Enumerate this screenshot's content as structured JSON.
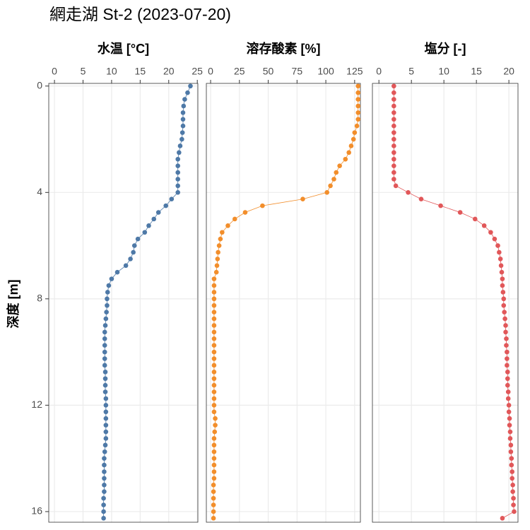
{
  "title": "網走湖 St-2 (2023-07-20)",
  "y_label": "深度 [m]",
  "chart_data": [
    {
      "type": "scatter",
      "title": "水温 [°C]",
      "color": "#4e79a7",
      "xlim": [
        -1,
        25.1
      ],
      "xticks": [
        0,
        5,
        10,
        15,
        20,
        25
      ],
      "ylim": [
        16.4,
        -0.1
      ],
      "yticks": [
        0,
        4,
        8,
        12,
        16
      ],
      "grid": true,
      "y": [
        0,
        0.25,
        0.5,
        0.75,
        1,
        1.25,
        1.5,
        1.75,
        2,
        2.25,
        2.5,
        2.75,
        3,
        3.25,
        3.5,
        3.75,
        4,
        4.25,
        4.5,
        4.75,
        5,
        5.25,
        5.5,
        5.75,
        6,
        6.25,
        6.5,
        6.75,
        7,
        7.25,
        7.5,
        7.75,
        8,
        8.25,
        8.5,
        8.75,
        9,
        9.25,
        9.5,
        9.75,
        10,
        10.25,
        10.5,
        10.75,
        11,
        11.25,
        11.5,
        11.75,
        12,
        12.25,
        12.5,
        12.75,
        13,
        13.25,
        13.5,
        13.75,
        14,
        14.25,
        14.5,
        14.75,
        15,
        15.25,
        15.5,
        15.75,
        16,
        16.25
      ],
      "x": [
        23.8,
        23.3,
        22.8,
        22.6,
        22.5,
        22.5,
        22.5,
        22.4,
        22.3,
        22.0,
        21.8,
        21.6,
        21.6,
        21.6,
        21.6,
        21.6,
        21.6,
        20.5,
        19.5,
        18.2,
        17.4,
        16.5,
        15.8,
        14.6,
        14.0,
        13.8,
        13.3,
        12.5,
        11.0,
        10.0,
        9.5,
        9.3,
        9.2,
        9.2,
        9.1,
        9.0,
        8.9,
        8.8,
        8.8,
        8.8,
        8.8,
        8.8,
        8.8,
        8.9,
        8.9,
        8.9,
        8.9,
        9.0,
        9.0,
        9.0,
        9.0,
        9.0,
        9.0,
        9.0,
        8.9,
        8.8,
        8.7,
        8.7,
        8.7,
        8.7,
        8.7,
        8.7,
        8.6,
        8.6,
        8.6,
        8.6
      ]
    },
    {
      "type": "scatter",
      "title": "溶存酸素 [%]",
      "color": "#f28e2b",
      "xlim": [
        -3.7,
        130
      ],
      "xticks": [
        0,
        25,
        50,
        75,
        100,
        125
      ],
      "ylim": [
        16.4,
        -0.1
      ],
      "yticks": [
        0,
        4,
        8,
        12,
        16
      ],
      "grid": true,
      "y": [
        0,
        0.25,
        0.5,
        0.75,
        1,
        1.25,
        1.5,
        1.75,
        2,
        2.25,
        2.5,
        2.75,
        3,
        3.25,
        3.5,
        3.75,
        4,
        4.25,
        4.5,
        4.75,
        5,
        5.25,
        5.5,
        5.75,
        6,
        6.25,
        6.5,
        6.75,
        7,
        7.25,
        7.5,
        7.75,
        8,
        8.25,
        8.5,
        8.75,
        9,
        9.25,
        9.5,
        9.75,
        10,
        10.25,
        10.5,
        10.75,
        11,
        11.25,
        11.5,
        11.75,
        12,
        12.25,
        12.5,
        12.75,
        13,
        13.25,
        13.5,
        13.75,
        14,
        14.25,
        14.5,
        14.75,
        15,
        15.25,
        15.5,
        15.75,
        16,
        16.25
      ],
      "x": [
        128,
        128,
        128,
        128,
        128,
        128,
        127,
        125,
        124,
        122,
        120,
        117,
        112,
        109,
        107,
        104,
        101,
        80,
        45,
        30,
        21,
        15,
        10,
        8.5,
        7.4,
        6.5,
        6,
        5.5,
        5,
        3,
        3,
        3,
        3,
        3,
        3,
        3,
        3,
        3,
        3,
        3,
        3,
        3,
        3,
        3,
        3,
        3,
        3,
        3,
        3,
        3,
        4,
        4,
        3.5,
        3,
        3,
        3,
        3,
        3,
        3,
        3,
        2.5,
        2.5,
        2.5,
        2.5,
        2.5,
        2.5
      ]
    },
    {
      "type": "scatter",
      "title": "塩分 [-]",
      "color": "#e15759",
      "xlim": [
        -1,
        21.4
      ],
      "xticks": [
        0,
        5,
        10,
        15,
        20
      ],
      "ylim": [
        16.4,
        -0.1
      ],
      "yticks": [
        0,
        4,
        8,
        12,
        16
      ],
      "grid": true,
      "y": [
        0,
        0.25,
        0.5,
        0.75,
        1,
        1.25,
        1.5,
        1.75,
        2,
        2.25,
        2.5,
        2.75,
        3,
        3.25,
        3.5,
        3.75,
        4,
        4.25,
        4.5,
        4.75,
        5,
        5.25,
        5.5,
        5.75,
        6,
        6.25,
        6.5,
        6.75,
        7,
        7.25,
        7.5,
        7.75,
        8,
        8.25,
        8.5,
        8.75,
        9,
        9.25,
        9.5,
        9.75,
        10,
        10.25,
        10.5,
        10.75,
        11,
        11.25,
        11.5,
        11.75,
        12,
        12.25,
        12.5,
        12.75,
        13,
        13.25,
        13.5,
        13.75,
        14,
        14.25,
        14.5,
        14.75,
        15,
        15.25,
        15.5,
        15.75,
        16,
        16.25
      ],
      "x": [
        2.3,
        2.3,
        2.3,
        2.3,
        2.3,
        2.3,
        2.3,
        2.3,
        2.3,
        2.3,
        2.3,
        2.3,
        2.3,
        2.3,
        2.3,
        2.6,
        4.5,
        6.5,
        9.5,
        12.5,
        14.8,
        16.2,
        17.2,
        17.8,
        18.3,
        18.5,
        18.7,
        18.8,
        18.9,
        19.0,
        19.0,
        19.1,
        19.2,
        19.2,
        19.3,
        19.4,
        19.5,
        19.5,
        19.6,
        19.6,
        19.7,
        19.7,
        19.7,
        19.8,
        19.8,
        19.8,
        19.9,
        19.9,
        20.0,
        20.0,
        20.1,
        20.1,
        20.2,
        20.2,
        20.3,
        20.3,
        20.4,
        20.4,
        20.5,
        20.5,
        20.6,
        20.6,
        20.7,
        20.7,
        20.8,
        19.0
      ]
    }
  ]
}
